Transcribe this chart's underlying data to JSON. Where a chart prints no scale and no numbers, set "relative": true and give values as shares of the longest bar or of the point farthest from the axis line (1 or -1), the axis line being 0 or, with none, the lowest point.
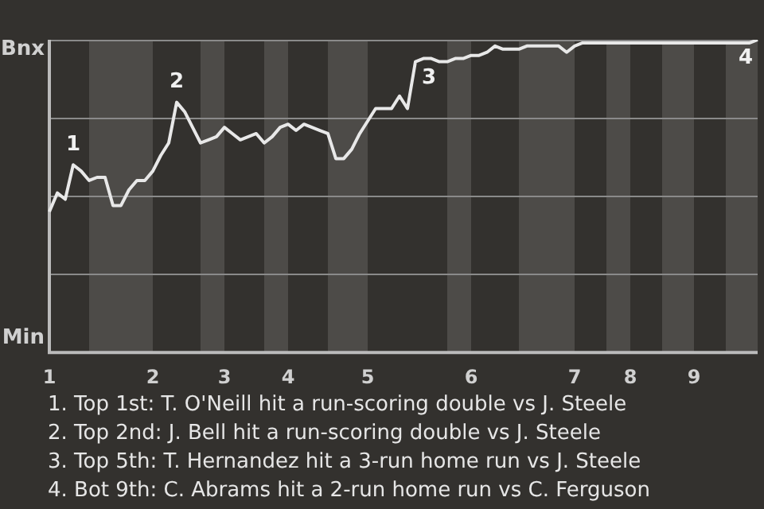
{
  "chart_data": {
    "type": "line",
    "relative": true,
    "marker": "none",
    "line_style": "solid",
    "categories": [
      "1",
      null,
      null,
      null,
      null,
      null,
      null,
      null,
      null,
      null,
      null,
      null,
      null,
      "2",
      null,
      null,
      null,
      null,
      null,
      null,
      null,
      null,
      "3",
      null,
      null,
      null,
      null,
      null,
      null,
      null,
      "4",
      null,
      null,
      null,
      null,
      null,
      null,
      null,
      null,
      null,
      "5",
      null,
      null,
      null,
      null,
      null,
      null,
      null,
      null,
      null,
      null,
      null,
      null,
      "6",
      null,
      null,
      null,
      null,
      null,
      null,
      null,
      null,
      null,
      null,
      null,
      null,
      "7",
      null,
      null,
      null,
      null,
      null,
      null,
      "8",
      null,
      null,
      null,
      null,
      null,
      null,
      null,
      "9",
      null,
      null,
      null,
      null,
      null,
      null,
      null,
      null
    ],
    "series": [
      {
        "color": "#e8e8e8",
        "values": [
          0.45,
          0.51,
          0.49,
          0.6,
          0.58,
          0.55,
          0.56,
          0.56,
          0.47,
          0.47,
          0.52,
          0.55,
          0.55,
          0.58,
          0.63,
          0.67,
          0.8,
          0.77,
          0.72,
          0.67,
          0.68,
          0.69,
          0.72,
          0.7,
          0.68,
          0.69,
          0.7,
          0.67,
          0.69,
          0.72,
          0.73,
          0.71,
          0.73,
          0.72,
          0.71,
          0.7,
          0.62,
          0.62,
          0.65,
          0.7,
          0.74,
          0.78,
          0.78,
          0.78,
          0.82,
          0.78,
          0.93,
          0.94,
          0.94,
          0.93,
          0.93,
          0.94,
          0.94,
          0.95,
          0.95,
          0.96,
          0.98,
          0.97,
          0.97,
          0.97,
          0.98,
          0.98,
          0.98,
          0.98,
          0.98,
          0.96,
          0.98,
          0.99,
          0.99,
          0.99,
          0.99,
          0.99,
          0.99,
          0.99,
          0.99,
          0.99,
          0.99,
          0.99,
          0.99,
          0.99,
          0.99,
          0.99,
          0.99,
          0.99,
          0.99,
          0.99,
          0.99,
          0.99,
          0.99,
          1
        ]
      }
    ],
    "ref_lines": [
      {
        "axis": "y",
        "value": 0.25,
        "color": "#8a8a8a"
      },
      {
        "axis": "y",
        "value": 0.5,
        "color": "#8a8a8a"
      },
      {
        "axis": "y",
        "value": 0.75,
        "color": "#8a8a8a"
      },
      {
        "axis": "y",
        "value": 1,
        "color": "#8a8a8a"
      }
    ],
    "annotations": [
      "Bnx",
      "Min",
      {
        "text": "1",
        "y": 0.6
      },
      {
        "text": "2",
        "y": 0.8
      },
      {
        "text": "3",
        "y": 0.93
      },
      {
        "text": "4",
        "y": 1
      },
      "1. Top 1st: T. O'Neill hit a run-scoring double vs J. Steele",
      "2. Top 2nd: J. Bell hit a run-scoring double vs J. Steele",
      "3. Top 5th: T. Hernandez hit a 3-run home run vs J. Steele",
      "4. Bot 9th: C. Abrams hit a 2-run home run vs C. Ferguson"
    ]
  }
}
